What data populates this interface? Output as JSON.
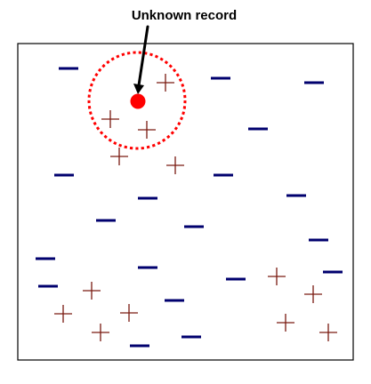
{
  "annotation": {
    "label": "Unknown record"
  },
  "colors": {
    "frame": "#000000",
    "negative": "#00006e",
    "positive": "#7a1a10",
    "query": "#ff0000",
    "neighborhood": "#ff0000",
    "arrow": "#000000"
  },
  "symbols": {
    "positive": "+",
    "negative": "−"
  },
  "legend_semantics": {
    "positive_icon": "plus-marker-icon",
    "negative_icon": "minus-marker-icon",
    "query_icon": "query-point-icon"
  }
}
